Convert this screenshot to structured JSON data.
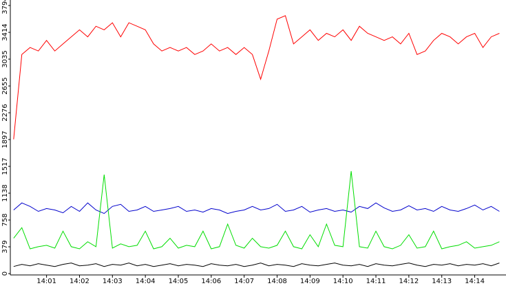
{
  "chart_data": {
    "type": "line",
    "x": [
      0,
      0.25,
      0.5,
      0.75,
      1,
      1.25,
      1.5,
      1.75,
      2,
      2.25,
      2.5,
      2.75,
      3,
      3.25,
      3.5,
      3.75,
      4,
      4.25,
      4.5,
      4.75,
      5,
      5.25,
      5.5,
      5.75,
      6,
      6.25,
      6.5,
      6.75,
      7,
      7.25,
      7.5,
      7.75,
      8,
      8.25,
      8.5,
      8.75,
      9,
      9.25,
      9.5,
      9.75,
      10,
      10.25,
      10.5,
      10.75,
      11,
      11.25,
      11.5,
      11.75,
      12,
      12.25,
      12.5,
      12.75,
      13,
      13.25,
      13.5,
      13.75,
      14,
      14.25,
      14.5,
      14.75
    ],
    "xlim": [
      -0.1,
      14.95
    ],
    "xticks": [
      {
        "value": 1,
        "label": "14:01"
      },
      {
        "value": 2,
        "label": "14:02"
      },
      {
        "value": 3,
        "label": "14:03"
      },
      {
        "value": 4,
        "label": "14:04"
      },
      {
        "value": 5,
        "label": "14:05"
      },
      {
        "value": 6,
        "label": "14:06"
      },
      {
        "value": 7,
        "label": "14:07"
      },
      {
        "value": 8,
        "label": "14:08"
      },
      {
        "value": 9,
        "label": "14:09"
      },
      {
        "value": 10,
        "label": "14:10"
      },
      {
        "value": 11,
        "label": "14:11"
      },
      {
        "value": 12,
        "label": "14:12"
      },
      {
        "value": 13,
        "label": "14:13"
      },
      {
        "value": 14,
        "label": "14:14"
      }
    ],
    "ylim": [
      0,
      3794
    ],
    "yticks": [
      0,
      379,
      758,
      1138,
      1517,
      1897,
      2276,
      2655,
      3035,
      3414,
      3794
    ],
    "series": [
      {
        "color": "#ff0000",
        "values": [
          1900,
          3100,
          3200,
          3150,
          3300,
          3150,
          3250,
          3350,
          3450,
          3350,
          3500,
          3450,
          3550,
          3350,
          3550,
          3500,
          3450,
          3250,
          3150,
          3200,
          3150,
          3200,
          3100,
          3150,
          3250,
          3150,
          3200,
          3100,
          3200,
          3100,
          2750,
          3150,
          3600,
          3650,
          3250,
          3350,
          3450,
          3300,
          3400,
          3350,
          3450,
          3300,
          3500,
          3400,
          3350,
          3300,
          3350,
          3250,
          3400,
          3100,
          3150,
          3300,
          3400,
          3350,
          3250,
          3350,
          3400,
          3200,
          3350,
          3400
        ]
      },
      {
        "color": "#0000cc",
        "values": [
          900,
          1000,
          950,
          880,
          920,
          900,
          860,
          950,
          880,
          1000,
          900,
          850,
          950,
          980,
          880,
          900,
          950,
          880,
          900,
          920,
          950,
          880,
          900,
          870,
          920,
          900,
          850,
          880,
          900,
          950,
          900,
          920,
          980,
          880,
          900,
          950,
          870,
          900,
          920,
          880,
          900,
          870,
          950,
          920,
          1000,
          930,
          880,
          900,
          960,
          900,
          920,
          880,
          950,
          900,
          880,
          920,
          970,
          900,
          950,
          880
        ]
      },
      {
        "color": "#00dd00",
        "values": [
          500,
          650,
          350,
          380,
          400,
          360,
          600,
          380,
          350,
          450,
          380,
          1400,
          360,
          420,
          380,
          400,
          600,
          350,
          380,
          500,
          360,
          400,
          380,
          600,
          350,
          380,
          700,
          400,
          360,
          500,
          380,
          360,
          400,
          600,
          380,
          350,
          550,
          380,
          700,
          400,
          380,
          1450,
          380,
          360,
          600,
          380,
          350,
          400,
          550,
          360,
          380,
          600,
          350,
          380,
          400,
          450,
          360,
          380,
          400,
          450
        ]
      },
      {
        "color": "#000000",
        "values": [
          100,
          130,
          110,
          140,
          120,
          100,
          130,
          150,
          110,
          120,
          140,
          100,
          130,
          120,
          150,
          110,
          130,
          100,
          120,
          140,
          110,
          130,
          120,
          100,
          140,
          120,
          110,
          130,
          100,
          120,
          150,
          110,
          130,
          120,
          100,
          140,
          120,
          110,
          130,
          150,
          120,
          110,
          130,
          100,
          140,
          120,
          110,
          130,
          150,
          120,
          100,
          130,
          120,
          140,
          110,
          130,
          120,
          140,
          110,
          150
        ]
      }
    ]
  }
}
